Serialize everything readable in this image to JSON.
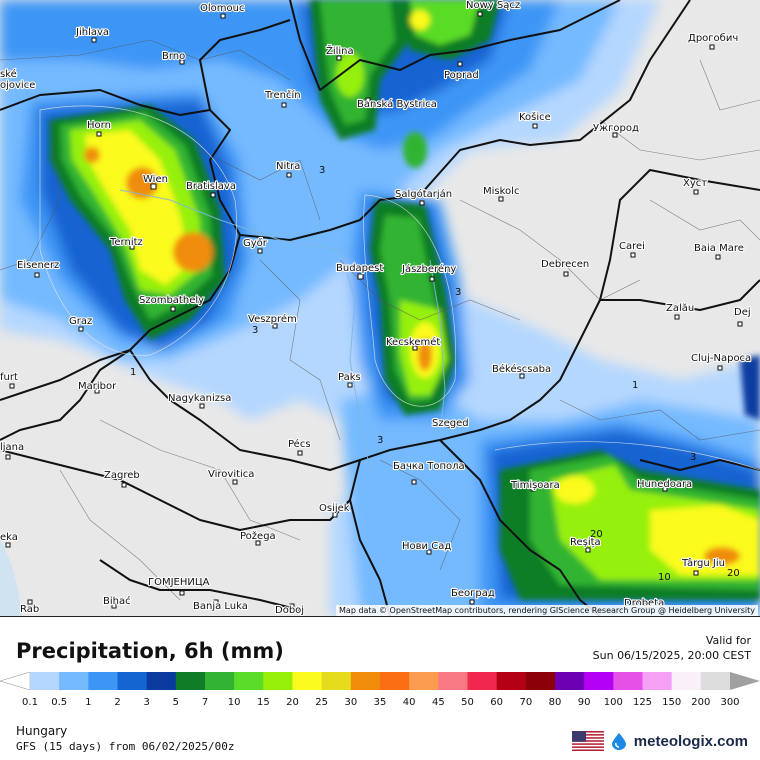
{
  "map": {
    "attribution": "Map data © OpenStreetMap contributors, rendering GIScience Research Group @ Heidelberg University",
    "cities": [
      {
        "name": "Olomouc"
      },
      {
        "name": "Nowy Sącz"
      },
      {
        "name": "Jihlava"
      },
      {
        "name": "Brno"
      },
      {
        "name": "Žilina"
      },
      {
        "name": "Poprad"
      },
      {
        "name": "Дрогобич"
      },
      {
        "name": "Trenčín"
      },
      {
        "name": "Banská Bystrica"
      },
      {
        "name": "Košice"
      },
      {
        "name": "Ужгород"
      },
      {
        "name": "Horn"
      },
      {
        "name": "Wien"
      },
      {
        "name": "Bratislava"
      },
      {
        "name": "Nitra"
      },
      {
        "name": "Salgótarján"
      },
      {
        "name": "Miskolc"
      },
      {
        "name": "Хуст"
      },
      {
        "name": "Ternitz"
      },
      {
        "name": "Győr"
      },
      {
        "name": "Budapest"
      },
      {
        "name": "Jászberény"
      },
      {
        "name": "Debrecen"
      },
      {
        "name": "Carei"
      },
      {
        "name": "Baia Mare"
      },
      {
        "name": "Eisenerz"
      },
      {
        "name": "Szombathely"
      },
      {
        "name": "Graz"
      },
      {
        "name": "Veszprém"
      },
      {
        "name": "Zalău"
      },
      {
        "name": "Kecskemét"
      },
      {
        "name": "Dej"
      },
      {
        "name": "Cluj-Napoca"
      },
      {
        "name": "Maribor"
      },
      {
        "name": "Nagykanizsa"
      },
      {
        "name": "Paks"
      },
      {
        "name": "Békéscsaba"
      },
      {
        "name": "Szeged"
      },
      {
        "name": "Pécs"
      },
      {
        "name": "Zagreb"
      },
      {
        "name": "Virovitica"
      },
      {
        "name": "Бачка Топола"
      },
      {
        "name": "Timișoara"
      },
      {
        "name": "Hunedoara"
      },
      {
        "name": "Osijek"
      },
      {
        "name": "Požega"
      },
      {
        "name": "Reșița"
      },
      {
        "name": "Нови Сад"
      },
      {
        "name": "Târgu Jiu"
      },
      {
        "name": "ГОМЈЕНИЦА"
      },
      {
        "name": "Bihać"
      },
      {
        "name": "Banja Luka"
      },
      {
        "name": "Doboj"
      },
      {
        "name": "Београд"
      },
      {
        "name": "Drobeta"
      },
      {
        "name": "Rab"
      },
      {
        "name": "ljana"
      },
      {
        "name": "furt"
      },
      {
        "name": "eka"
      },
      {
        "name": "ské"
      },
      {
        "name": "ojovice"
      }
    ],
    "contour_labels": [
      "1",
      "3",
      "3",
      "3",
      "3",
      "1",
      "3",
      "20",
      "10",
      "20"
    ]
  },
  "footer": {
    "title": "Precipitation, 6h (mm)",
    "valid_label": "Valid for",
    "valid_time": "Sun 06/15/2025, 20:00 CEST",
    "region": "Hungary",
    "model": "GFS (15 days) from 06/02/2025/00z",
    "brand": "meteologix.com",
    "flag_icon": "us-flag-icon"
  },
  "legend": {
    "labels": [
      "0.1",
      "0.5",
      "1",
      "2",
      "3",
      "5",
      "7",
      "10",
      "15",
      "20",
      "25",
      "30",
      "35",
      "40",
      "45",
      "50",
      "60",
      "70",
      "80",
      "90",
      "100",
      "125",
      "150",
      "200",
      "300"
    ],
    "colors": [
      "#ffffff",
      "#b4d7ff",
      "#75baff",
      "#3c96f5",
      "#1464d2",
      "#0a3ca0",
      "#0f7d28",
      "#32b432",
      "#5adc28",
      "#96f00a",
      "#fafa1e",
      "#e6dc1e",
      "#f08c0a",
      "#fa6e14",
      "#fa9b50",
      "#f57882",
      "#f02850",
      "#b40014",
      "#8c000a",
      "#6e00b4",
      "#b400f5",
      "#e650e6",
      "#f5a0f5",
      "#faf0fa",
      "#dcdcdc",
      "#a0a0a0"
    ]
  }
}
